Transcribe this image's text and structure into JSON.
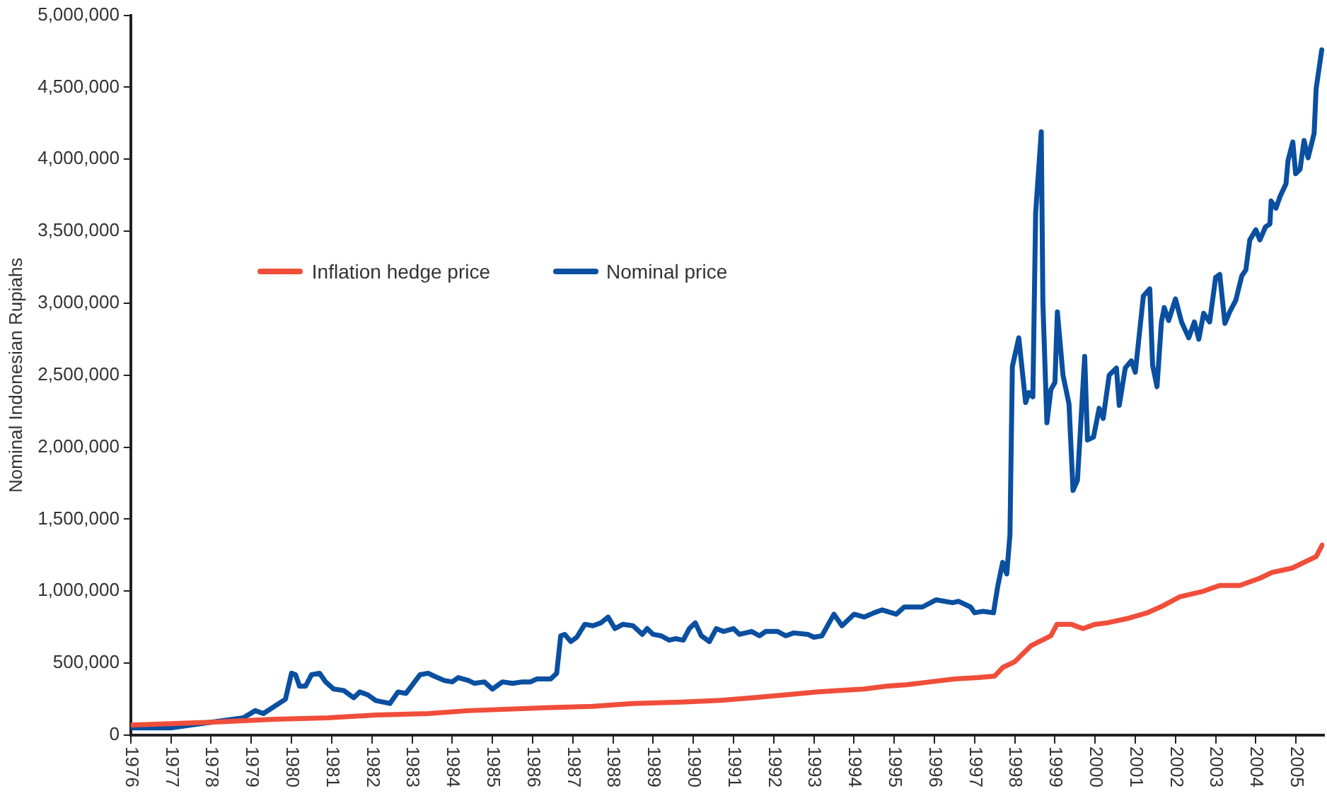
{
  "chart_data": {
    "type": "line",
    "ylabel": "Nominal Indonesian Rupiahs",
    "xlim": [
      1976,
      2005.7
    ],
    "xticks": [
      1976,
      1977,
      1978,
      1979,
      1980,
      1981,
      1982,
      1983,
      1984,
      1985,
      1986,
      1987,
      1988,
      1989,
      1990,
      1991,
      1992,
      1993,
      1994,
      1995,
      1996,
      1997,
      1998,
      1999,
      2000,
      2001,
      2002,
      2003,
      2004,
      2005
    ],
    "ylim": [
      0,
      5000000
    ],
    "yticks": [
      {
        "value": 0,
        "label": "0"
      },
      {
        "value": 500000,
        "label": "500,000"
      },
      {
        "value": 1000000,
        "label": "1,000,000"
      },
      {
        "value": 1500000,
        "label": "1,500,000"
      },
      {
        "value": 2000000,
        "label": "2,000,000"
      },
      {
        "value": 2500000,
        "label": "2,500,000"
      },
      {
        "value": 3000000,
        "label": "3,000,000"
      },
      {
        "value": 3500000,
        "label": "3,500,000"
      },
      {
        "value": 4000000,
        "label": "4,000,000"
      },
      {
        "value": 4500000,
        "label": "4,500,000"
      },
      {
        "value": 5000000,
        "label": "5,000,000"
      }
    ],
    "grid": false,
    "legend": "top left",
    "marker": "none",
    "line_style": "solid",
    "series": [
      {
        "name": "Inflation hedge price",
        "color": "#f04e3a",
        "x": [
          1976,
          1978,
          1979.6,
          1980.9,
          1982.1,
          1983.4,
          1984.4,
          1986.3,
          1987.5,
          1988.5,
          1989.7,
          1990.6,
          1991.5,
          1992.3,
          1993.05,
          1993.65,
          1994.25,
          1994.8,
          1995.3,
          1995.9,
          1996.5,
          1997.1,
          1997.5,
          1997.7,
          1998,
          1998.4,
          1998.9,
          1999.05,
          1999.4,
          1999.7,
          2000,
          2000.3,
          2000.8,
          2001.3,
          2001.7,
          2002.1,
          2002.7,
          2003.1,
          2003.6,
          2004.1,
          2004.4,
          2004.9,
          2005.5,
          2005.65
        ],
        "values": [
          70000,
          90000,
          110000,
          120000,
          140000,
          150000,
          170000,
          190000,
          200000,
          220000,
          230000,
          240000,
          260000,
          280000,
          300000,
          310000,
          320000,
          340000,
          350000,
          370000,
          390000,
          400000,
          410000,
          470000,
          510000,
          620000,
          690000,
          770000,
          770000,
          740000,
          770000,
          780000,
          810000,
          850000,
          900000,
          960000,
          1000000,
          1040000,
          1040000,
          1090000,
          1130000,
          1160000,
          1240000,
          1320000
        ]
      },
      {
        "name": "Nominal price",
        "color": "#0a4fa0",
        "x": [
          1976,
          1977,
          1978,
          1978.8,
          1979.1,
          1979.3,
          1979.85,
          1980,
          1980.1,
          1980.2,
          1980.35,
          1980.5,
          1980.7,
          1980.85,
          1981.05,
          1981.3,
          1981.55,
          1981.7,
          1981.9,
          1982.1,
          1982.45,
          1982.65,
          1982.85,
          1983.2,
          1983.4,
          1983.55,
          1983.8,
          1984,
          1984.15,
          1984.4,
          1984.55,
          1984.8,
          1985,
          1985.25,
          1985.5,
          1985.75,
          1985.95,
          1986.1,
          1986.45,
          1986.6,
          1986.7,
          1986.8,
          1986.95,
          1987.1,
          1987.3,
          1987.5,
          1987.7,
          1987.88,
          1988.05,
          1988.25,
          1988.5,
          1988.73,
          1988.85,
          1989,
          1989.2,
          1989.4,
          1989.55,
          1989.75,
          1989.9,
          1990.05,
          1990.2,
          1990.4,
          1990.57,
          1990.75,
          1991,
          1991.15,
          1991.45,
          1991.65,
          1991.8,
          1992.1,
          1992.3,
          1992.5,
          1992.85,
          1993,
          1993.2,
          1993.5,
          1993.7,
          1994,
          1994.25,
          1994.5,
          1994.7,
          1995.05,
          1995.25,
          1995.7,
          1996.04,
          1996.45,
          1996.6,
          1996.9,
          1997,
          1997.2,
          1997.47,
          1997.58,
          1997.7,
          1997.8,
          1997.88,
          1997.94,
          1998.1,
          1998.27,
          1998.35,
          1998.45,
          1998.52,
          1998.66,
          1998.7,
          1998.8,
          1998.9,
          1999,
          1999.06,
          1999.2,
          1999.35,
          1999.45,
          1999.56,
          1999.74,
          1999.81,
          1999.96,
          2000.1,
          2000.2,
          2000.35,
          2000.53,
          2000.6,
          2000.75,
          2000.9,
          2001,
          2001.2,
          2001.36,
          2001.43,
          2001.54,
          2001.65,
          2001.72,
          2001.83,
          2002,
          2002.15,
          2002.33,
          2002.47,
          2002.58,
          2002.7,
          2002.85,
          2003,
          2003.1,
          2003.23,
          2003.35,
          2003.5,
          2003.65,
          2003.75,
          2003.85,
          2004,
          2004.1,
          2004.24,
          2004.35,
          2004.38,
          2004.5,
          2004.6,
          2004.75,
          2004.8,
          2004.92,
          2004.99,
          2005.1,
          2005.2,
          2005.3,
          2005.45,
          2005.5,
          2005.64
        ],
        "values": [
          50000,
          50000,
          90000,
          120000,
          170000,
          150000,
          250000,
          430000,
          420000,
          340000,
          340000,
          420000,
          430000,
          370000,
          320000,
          310000,
          260000,
          300000,
          280000,
          240000,
          220000,
          300000,
          290000,
          420000,
          430000,
          410000,
          380000,
          370000,
          400000,
          380000,
          360000,
          370000,
          320000,
          370000,
          360000,
          370000,
          370000,
          390000,
          390000,
          430000,
          690000,
          700000,
          650000,
          680000,
          770000,
          760000,
          780000,
          820000,
          740000,
          770000,
          760000,
          700000,
          740000,
          700000,
          690000,
          660000,
          670000,
          660000,
          740000,
          780000,
          690000,
          650000,
          740000,
          720000,
          740000,
          700000,
          720000,
          690000,
          720000,
          720000,
          690000,
          710000,
          700000,
          680000,
          690000,
          840000,
          760000,
          840000,
          820000,
          850000,
          870000,
          840000,
          890000,
          890000,
          940000,
          920000,
          930000,
          890000,
          850000,
          860000,
          850000,
          1040000,
          1200000,
          1120000,
          1390000,
          2560000,
          2760000,
          2310000,
          2380000,
          2350000,
          3630000,
          4190000,
          3000000,
          2170000,
          2400000,
          2450000,
          2940000,
          2500000,
          2300000,
          1700000,
          1770000,
          2630000,
          2050000,
          2070000,
          2270000,
          2200000,
          2500000,
          2550000,
          2290000,
          2550000,
          2600000,
          2520000,
          3050000,
          3100000,
          2570000,
          2420000,
          2870000,
          2970000,
          2880000,
          3030000,
          2870000,
          2760000,
          2870000,
          2750000,
          2930000,
          2870000,
          3180000,
          3200000,
          2860000,
          2940000,
          3020000,
          3190000,
          3230000,
          3440000,
          3510000,
          3440000,
          3530000,
          3550000,
          3710000,
          3660000,
          3740000,
          3830000,
          3990000,
          4120000,
          3900000,
          3930000,
          4130000,
          4010000,
          4180000,
          4490000,
          4760000
        ]
      }
    ]
  }
}
